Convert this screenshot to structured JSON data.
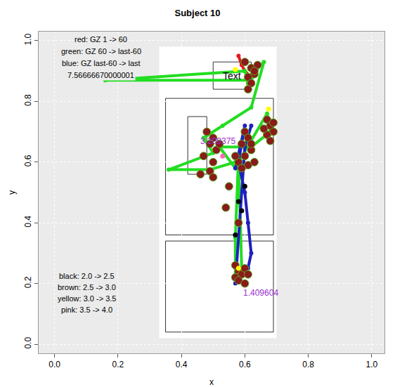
{
  "chart_data": {
    "type": "scatter",
    "title": "Subject 10",
    "x_label": "x",
    "y_label": "y",
    "xlim": [
      -0.05,
      1.04
    ],
    "ylim": [
      -0.03,
      1.03
    ],
    "xticks": [
      {
        "value": 0,
        "label": "0.0"
      },
      0.2,
      0.4,
      0.6,
      0.8,
      {
        "value": 1,
        "label": "1.0"
      }
    ],
    "yticks": [
      {
        "value": 0,
        "label": "0.0"
      },
      0.2,
      0.4,
      0.6,
      0.8,
      {
        "value": 1,
        "label": "1.0"
      }
    ],
    "grid": true,
    "series": [
      {
        "name": "red: GZ 1 -> 60",
        "color": "#e41a1c",
        "type": "line",
        "x": [
          0.58,
          0.59,
          0.6,
          0.62,
          0.61
        ],
        "y": [
          0.95,
          0.92,
          0.9,
          0.88,
          0.86
        ]
      },
      {
        "name": "green: GZ 60 -> last-60",
        "color": "#22dd22",
        "type": "line",
        "x": [
          0.61,
          0.6,
          0.16,
          0.62,
          0.64,
          0.66,
          0.62,
          0.53,
          0.47,
          0.5,
          0.36,
          0.49,
          0.57,
          0.58,
          0.57,
          0.57,
          0.59,
          0.58,
          0.67,
          0.68,
          0.62,
          0.52,
          0.57
        ],
        "y": [
          0.86,
          0.9,
          0.87,
          0.87,
          0.91,
          0.93,
          0.78,
          0.72,
          0.68,
          0.63,
          0.575,
          0.575,
          0.6,
          0.62,
          0.35,
          0.22,
          0.25,
          0.6,
          0.76,
          0.7,
          0.65,
          0.65,
          0.58
        ]
      },
      {
        "name": "blue: GZ last-60 -> last",
        "color": "#1f1fbf",
        "type": "line",
        "x": [
          0.57,
          0.6,
          0.59,
          0.58,
          0.6,
          0.61,
          0.62,
          0.61,
          0.58,
          0.57,
          0.6,
          0.62
        ],
        "y": [
          0.58,
          0.72,
          0.66,
          0.6,
          0.5,
          0.4,
          0.3,
          0.25,
          0.22,
          0.2,
          0.65,
          0.72
        ]
      },
      {
        "name": "black: 2.0 -> 2.5",
        "color": "#000000",
        "type": "marker",
        "x": [
          0.58,
          0.59,
          0.57,
          0.6
        ],
        "y": [
          0.47,
          0.44,
          0.36,
          0.52
        ]
      },
      {
        "name": "brown: 2.5 -> 3.0",
        "color": "#8b1a1a",
        "type": "marker",
        "x": [
          0.6,
          0.62,
          0.63,
          0.61,
          0.64,
          0.62,
          0.61,
          0.63,
          0.67,
          0.68,
          0.69,
          0.67,
          0.68,
          0.66,
          0.69,
          0.6,
          0.61,
          0.59,
          0.62,
          0.6,
          0.58,
          0.61,
          0.59,
          0.63,
          0.62,
          0.57,
          0.48,
          0.5,
          0.49,
          0.51,
          0.47,
          0.5,
          0.49,
          0.46,
          0.5,
          0.52,
          0.54,
          0.55,
          0.58,
          0.57,
          0.58,
          0.59,
          0.6,
          0.57,
          0.58,
          0.6,
          0.61
        ],
        "y": [
          0.93,
          0.91,
          0.89,
          0.88,
          0.92,
          0.86,
          0.84,
          0.9,
          0.74,
          0.72,
          0.7,
          0.69,
          0.67,
          0.71,
          0.73,
          0.7,
          0.68,
          0.66,
          0.64,
          0.62,
          0.6,
          0.59,
          0.58,
          0.6,
          0.66,
          0.62,
          0.7,
          0.68,
          0.66,
          0.64,
          0.62,
          0.6,
          0.57,
          0.56,
          0.55,
          0.66,
          0.45,
          0.52,
          0.4,
          0.26,
          0.24,
          0.23,
          0.25,
          0.22,
          0.21,
          0.2,
          0.23
        ]
      },
      {
        "name": "yellow: 3.0 -> 3.5",
        "color": "#ffff00",
        "type": "marker",
        "x": [
          0.57,
          0.675,
          0.58
        ],
        "y": [
          0.905,
          0.775,
          0.25
        ]
      },
      {
        "name": "pink: 3.5 -> 4.0",
        "color": "#ff69b4",
        "type": "marker",
        "x": [
          0.53
        ],
        "y": [
          0.62
        ]
      }
    ],
    "annotations": [
      {
        "text": "7.56666670000001",
        "color": "#000000"
      },
      {
        "text": "3.209375",
        "x": 0.515,
        "y": 0.67,
        "color": "#9b30d0"
      },
      {
        "text": "1.409604",
        "x": 0.65,
        "y": 0.17,
        "color": "#9b30d0"
      },
      {
        "text": "Text",
        "x": 0.56,
        "y": 0.885,
        "color": "#000000"
      }
    ]
  }
}
